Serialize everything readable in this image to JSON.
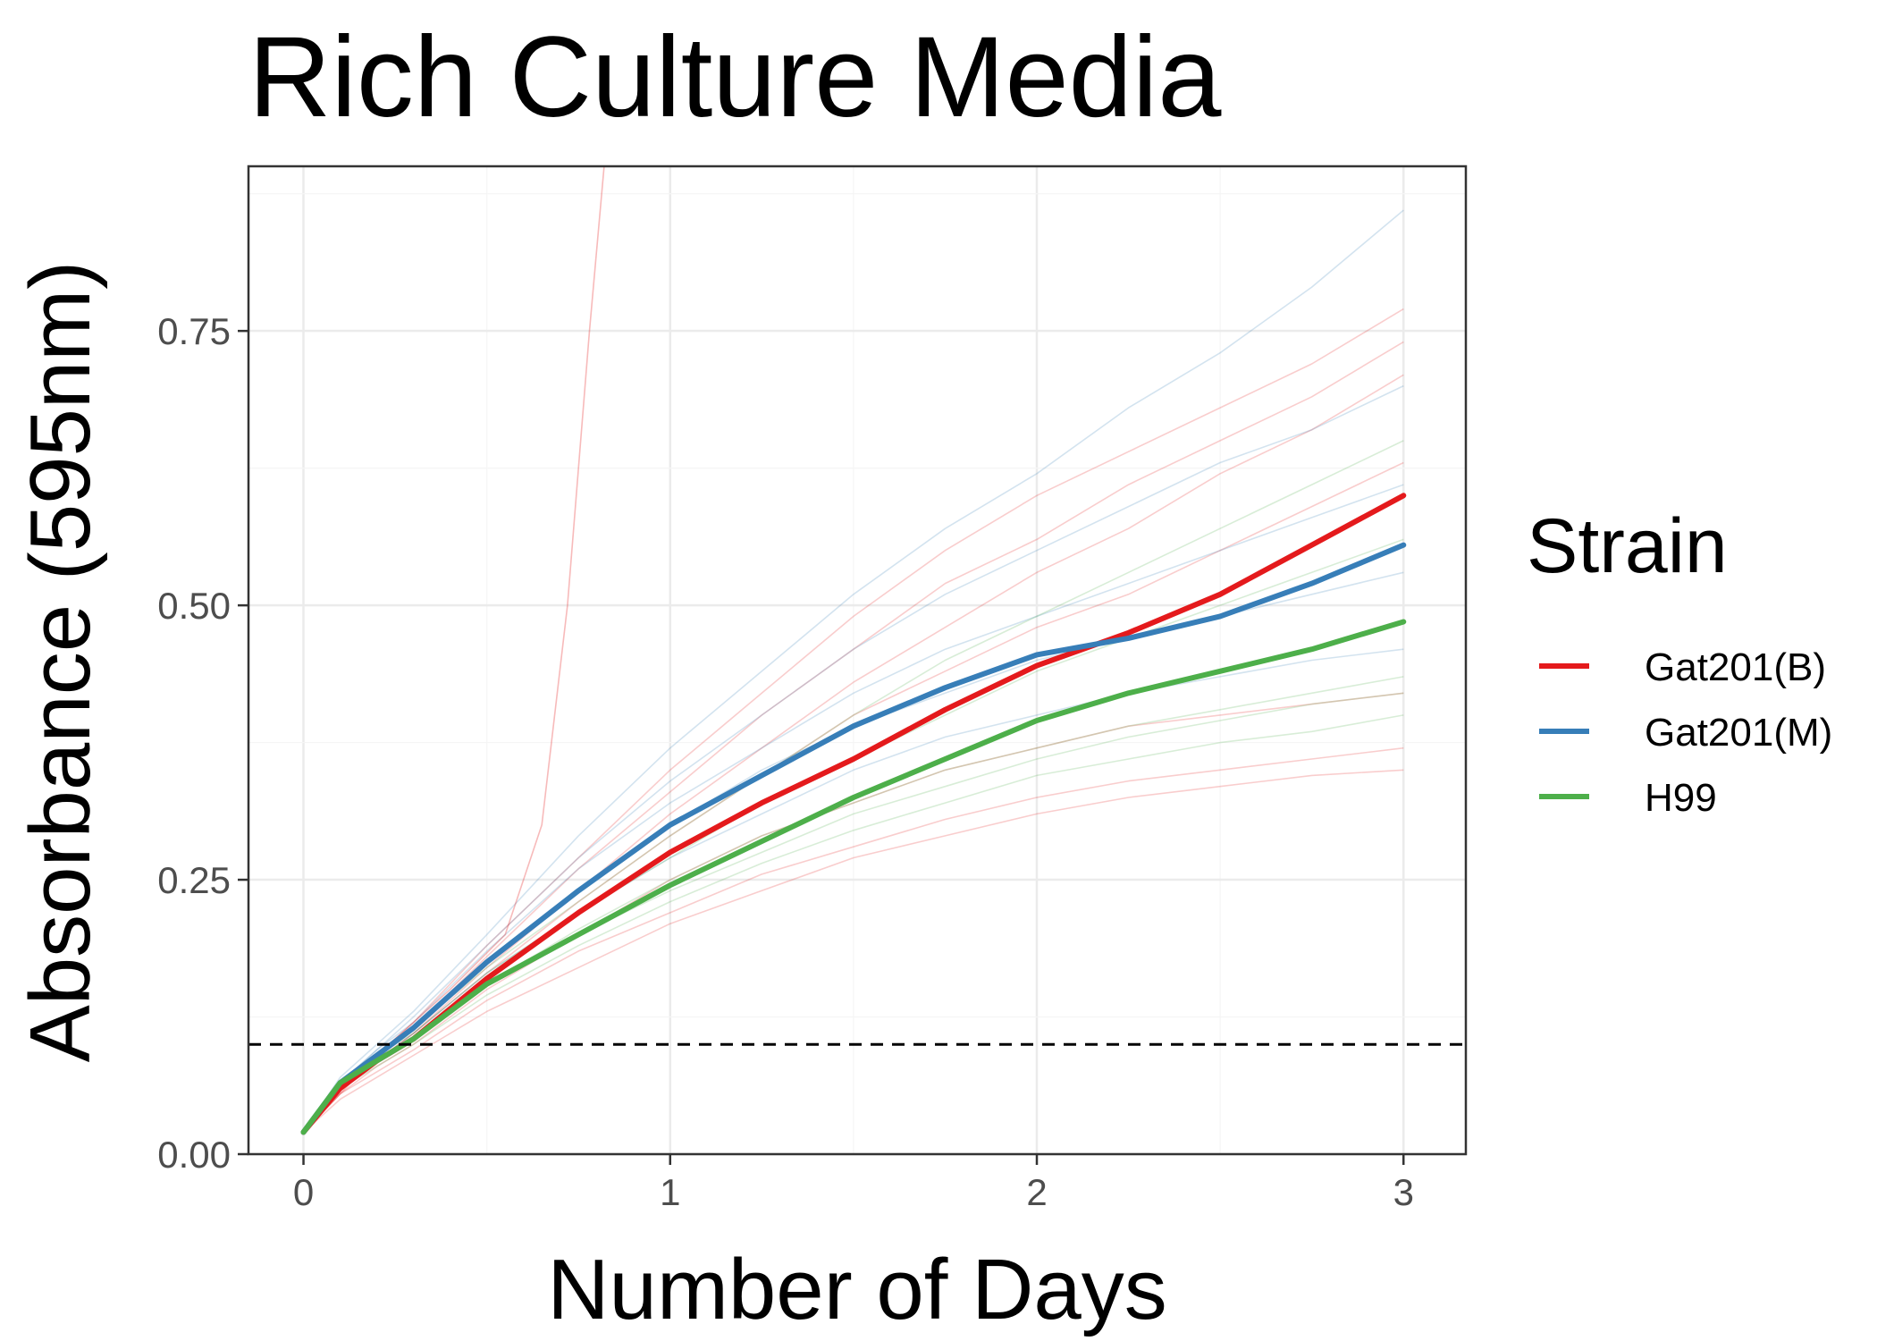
{
  "chart_data": {
    "type": "line",
    "title": "Rich Culture Media",
    "xlabel": "Number of Days",
    "ylabel": "Absorbance (595nm)",
    "xlim": [
      -0.15,
      3.17
    ],
    "ylim": [
      0,
      0.9
    ],
    "xticks": [
      0,
      1,
      2,
      3
    ],
    "xtick_labels": [
      "0",
      "1",
      "2",
      "3"
    ],
    "yticks": [
      0,
      0.25,
      0.5,
      0.75
    ],
    "ytick_labels": [
      "0.00",
      "0.25",
      "0.50",
      "0.75"
    ],
    "grid": true,
    "reference_line": {
      "y": 0.1,
      "style": "dashed",
      "color": "#000000"
    },
    "legend": {
      "title": "Strain",
      "position": "right"
    },
    "x": [
      0,
      0.1,
      0.2,
      0.3,
      0.5,
      0.75,
      1.0,
      1.25,
      1.5,
      1.75,
      2.0,
      2.25,
      2.5,
      2.75,
      3.0
    ],
    "series": [
      {
        "name": "Gat201(B)",
        "color": "#E41A1C",
        "values": [
          0.02,
          0.06,
          0.085,
          0.105,
          0.16,
          0.22,
          0.275,
          0.32,
          0.36,
          0.405,
          0.445,
          0.475,
          0.51,
          0.555,
          0.6
        ]
      },
      {
        "name": "Gat201(M)",
        "color": "#377EB8",
        "values": [
          0.02,
          0.065,
          0.09,
          0.115,
          0.175,
          0.24,
          0.3,
          0.345,
          0.39,
          0.425,
          0.455,
          0.47,
          0.49,
          0.52,
          0.555
        ]
      },
      {
        "name": "H99",
        "color": "#4DAF4A",
        "values": [
          0.02,
          0.065,
          0.085,
          0.105,
          0.155,
          0.2,
          0.245,
          0.285,
          0.325,
          0.36,
          0.395,
          0.42,
          0.44,
          0.46,
          0.485
        ]
      }
    ],
    "replicate_lines": [
      {
        "color": "#E41A1C",
        "values": [
          0.02,
          0.06,
          0.09,
          0.12,
          0.19,
          0.27,
          0.35,
          0.42,
          0.49,
          0.55,
          0.6,
          0.64,
          0.68,
          0.72,
          0.77
        ]
      },
      {
        "color": "#E41A1C",
        "values": [
          0.02,
          0.06,
          0.085,
          0.11,
          0.17,
          0.24,
          0.31,
          0.37,
          0.43,
          0.48,
          0.53,
          0.57,
          0.62,
          0.66,
          0.71
        ]
      },
      {
        "color": "#E41A1C",
        "values": [
          0.02,
          0.055,
          0.08,
          0.1,
          0.15,
          0.2,
          0.25,
          0.29,
          0.32,
          0.35,
          0.37,
          0.39,
          0.4,
          0.41,
          0.42
        ]
      },
      {
        "color": "#E41A1C",
        "values": [
          0.02,
          0.055,
          0.075,
          0.095,
          0.14,
          0.185,
          0.22,
          0.255,
          0.28,
          0.305,
          0.325,
          0.34,
          0.35,
          0.36,
          0.37
        ]
      },
      {
        "color": "#E41A1C",
        "values": [
          0.02,
          0.05,
          0.07,
          0.09,
          0.13,
          0.17,
          0.21,
          0.24,
          0.27,
          0.29,
          0.31,
          0.325,
          0.335,
          0.345,
          0.35
        ]
      },
      {
        "color": "#E41A1C",
        "values": [
          0.02,
          0.06,
          0.085,
          0.11,
          0.165,
          0.23,
          0.29,
          0.345,
          0.4,
          0.44,
          0.48,
          0.51,
          0.55,
          0.59,
          0.63
        ]
      },
      {
        "color": "#E41A1C",
        "values": [
          0.02,
          0.06,
          0.09,
          0.115,
          0.18,
          0.26,
          0.33,
          0.4,
          0.46,
          0.52,
          0.56,
          0.61,
          0.65,
          0.69,
          0.74
        ]
      },
      {
        "color": "#377EB8",
        "values": [
          0.02,
          0.07,
          0.1,
          0.13,
          0.2,
          0.29,
          0.37,
          0.44,
          0.51,
          0.57,
          0.62,
          0.68,
          0.73,
          0.79,
          0.86
        ]
      },
      {
        "color": "#377EB8",
        "values": [
          0.02,
          0.065,
          0.095,
          0.125,
          0.19,
          0.27,
          0.34,
          0.4,
          0.46,
          0.51,
          0.55,
          0.59,
          0.63,
          0.66,
          0.7
        ]
      },
      {
        "color": "#377EB8",
        "values": [
          0.02,
          0.065,
          0.09,
          0.115,
          0.175,
          0.24,
          0.3,
          0.35,
          0.39,
          0.42,
          0.45,
          0.47,
          0.49,
          0.51,
          0.53
        ]
      },
      {
        "color": "#377EB8",
        "values": [
          0.02,
          0.06,
          0.085,
          0.11,
          0.165,
          0.22,
          0.27,
          0.31,
          0.35,
          0.38,
          0.4,
          0.42,
          0.435,
          0.45,
          0.46
        ]
      },
      {
        "color": "#377EB8",
        "values": [
          0.02,
          0.065,
          0.095,
          0.12,
          0.185,
          0.26,
          0.32,
          0.37,
          0.42,
          0.46,
          0.49,
          0.52,
          0.55,
          0.58,
          0.61
        ]
      },
      {
        "color": "#4DAF4A",
        "values": [
          0.02,
          0.065,
          0.09,
          0.115,
          0.17,
          0.23,
          0.29,
          0.345,
          0.4,
          0.45,
          0.49,
          0.53,
          0.57,
          0.61,
          0.65
        ]
      },
      {
        "color": "#4DAF4A",
        "values": [
          0.02,
          0.06,
          0.085,
          0.105,
          0.155,
          0.2,
          0.24,
          0.275,
          0.31,
          0.335,
          0.36,
          0.38,
          0.395,
          0.41,
          0.42
        ]
      },
      {
        "color": "#4DAF4A",
        "values": [
          0.02,
          0.06,
          0.08,
          0.1,
          0.145,
          0.19,
          0.23,
          0.265,
          0.295,
          0.32,
          0.345,
          0.36,
          0.375,
          0.385,
          0.4
        ]
      },
      {
        "color": "#4DAF4A",
        "values": [
          0.02,
          0.065,
          0.09,
          0.11,
          0.165,
          0.22,
          0.27,
          0.32,
          0.36,
          0.4,
          0.44,
          0.47,
          0.5,
          0.53,
          0.56
        ]
      },
      {
        "color": "#4DAF4A",
        "values": [
          0.02,
          0.06,
          0.085,
          0.105,
          0.155,
          0.205,
          0.25,
          0.29,
          0.32,
          0.35,
          0.37,
          0.39,
          0.405,
          0.42,
          0.435
        ]
      }
    ],
    "outlier_line": {
      "color": "#E41A1C",
      "x": [
        0,
        0.2,
        0.4,
        0.55,
        0.65,
        0.72,
        0.78,
        0.82
      ],
      "values": [
        0.02,
        0.09,
        0.15,
        0.2,
        0.3,
        0.5,
        0.75,
        0.9
      ]
    }
  }
}
